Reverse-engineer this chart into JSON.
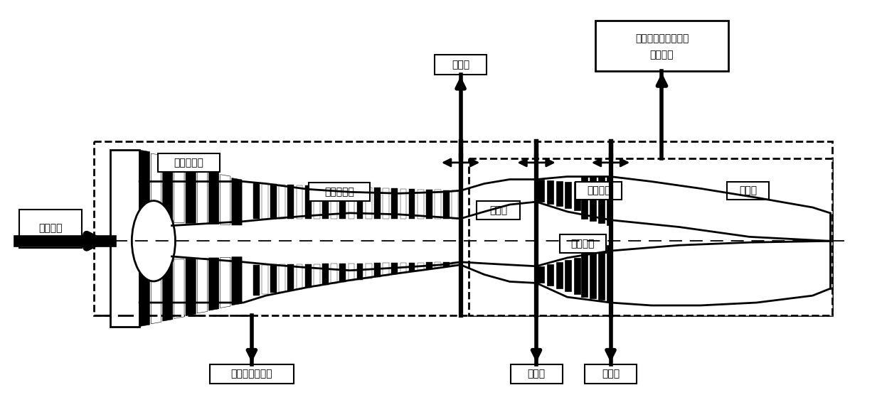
{
  "bg_color": "#ffffff",
  "label_jinkou": "进口边界",
  "label_dianya_comp": "低压压气机",
  "label_gaoya_comp": "高压压气机",
  "label_ranshao": "燃烧室",
  "label_dianya_turb": "低压渦轮",
  "label_gaoya_turb": "高压渦轮",
  "label_weipen": "尾喷管",
  "label_jiejie_top": "交接面",
  "label_jiejie_bot1": "交接面",
  "label_jiejie_bot2": "交接面",
  "label_3d": "三维彻体力模型",
  "label_2d_line1": "二维多子平行发动机",
  "label_2d_line2": "部件模型"
}
